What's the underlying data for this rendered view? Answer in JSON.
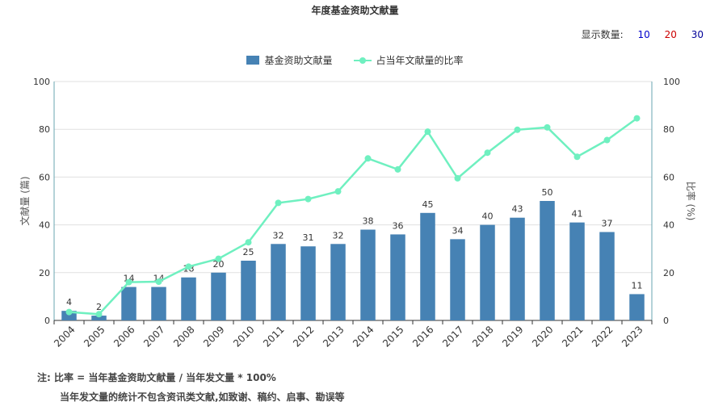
{
  "title": "年度基金资助文献量",
  "count_selector": {
    "label": "显示数量:",
    "options": [
      {
        "label": "10",
        "color": "#0000cc"
      },
      {
        "label": "20",
        "color": "#cc0000"
      },
      {
        "label": "30",
        "color": "#000099"
      }
    ]
  },
  "notes": {
    "line1": "注:  比率 = 当年基金资助文献量 / 当年发文量 * 100%",
    "line2": "当年发文量的统计不包含资讯类文献,如致谢、稿约、启事、勘误等"
  },
  "chart_data": {
    "type": "bar",
    "categories": [
      "2004",
      "2005",
      "2006",
      "2007",
      "2008",
      "2009",
      "2010",
      "2011",
      "2012",
      "2013",
      "2014",
      "2015",
      "2016",
      "2017",
      "2018",
      "2019",
      "2020",
      "2021",
      "2022",
      "2023"
    ],
    "series": [
      {
        "name": "基金资助文献量",
        "type": "bar",
        "axis": "left",
        "color": "#4682b4",
        "values": [
          4,
          2,
          14,
          14,
          18,
          20,
          25,
          32,
          31,
          32,
          38,
          36,
          45,
          34,
          40,
          43,
          50,
          41,
          37,
          11
        ]
      },
      {
        "name": "占当年文献量的比率",
        "type": "line",
        "axis": "right",
        "color": "#6ff0c0",
        "values": [
          3.5,
          2.6,
          16,
          16.2,
          22.5,
          25.8,
          32.7,
          49.2,
          50.8,
          54,
          67.8,
          63.2,
          79,
          59.5,
          70.2,
          79.8,
          80.8,
          68.5,
          75.5,
          84.6
        ]
      }
    ],
    "ylabel": "文献量 (篇)",
    "y2label": "比率 (%)",
    "ylim": [
      0,
      100
    ],
    "y2lim": [
      0,
      100
    ],
    "yticks": [
      "0",
      "20",
      "40",
      "60",
      "80",
      "100"
    ],
    "y2ticks": [
      "0",
      "20",
      "40",
      "60",
      "80",
      "100"
    ],
    "grid": true,
    "legend": "top-center"
  }
}
